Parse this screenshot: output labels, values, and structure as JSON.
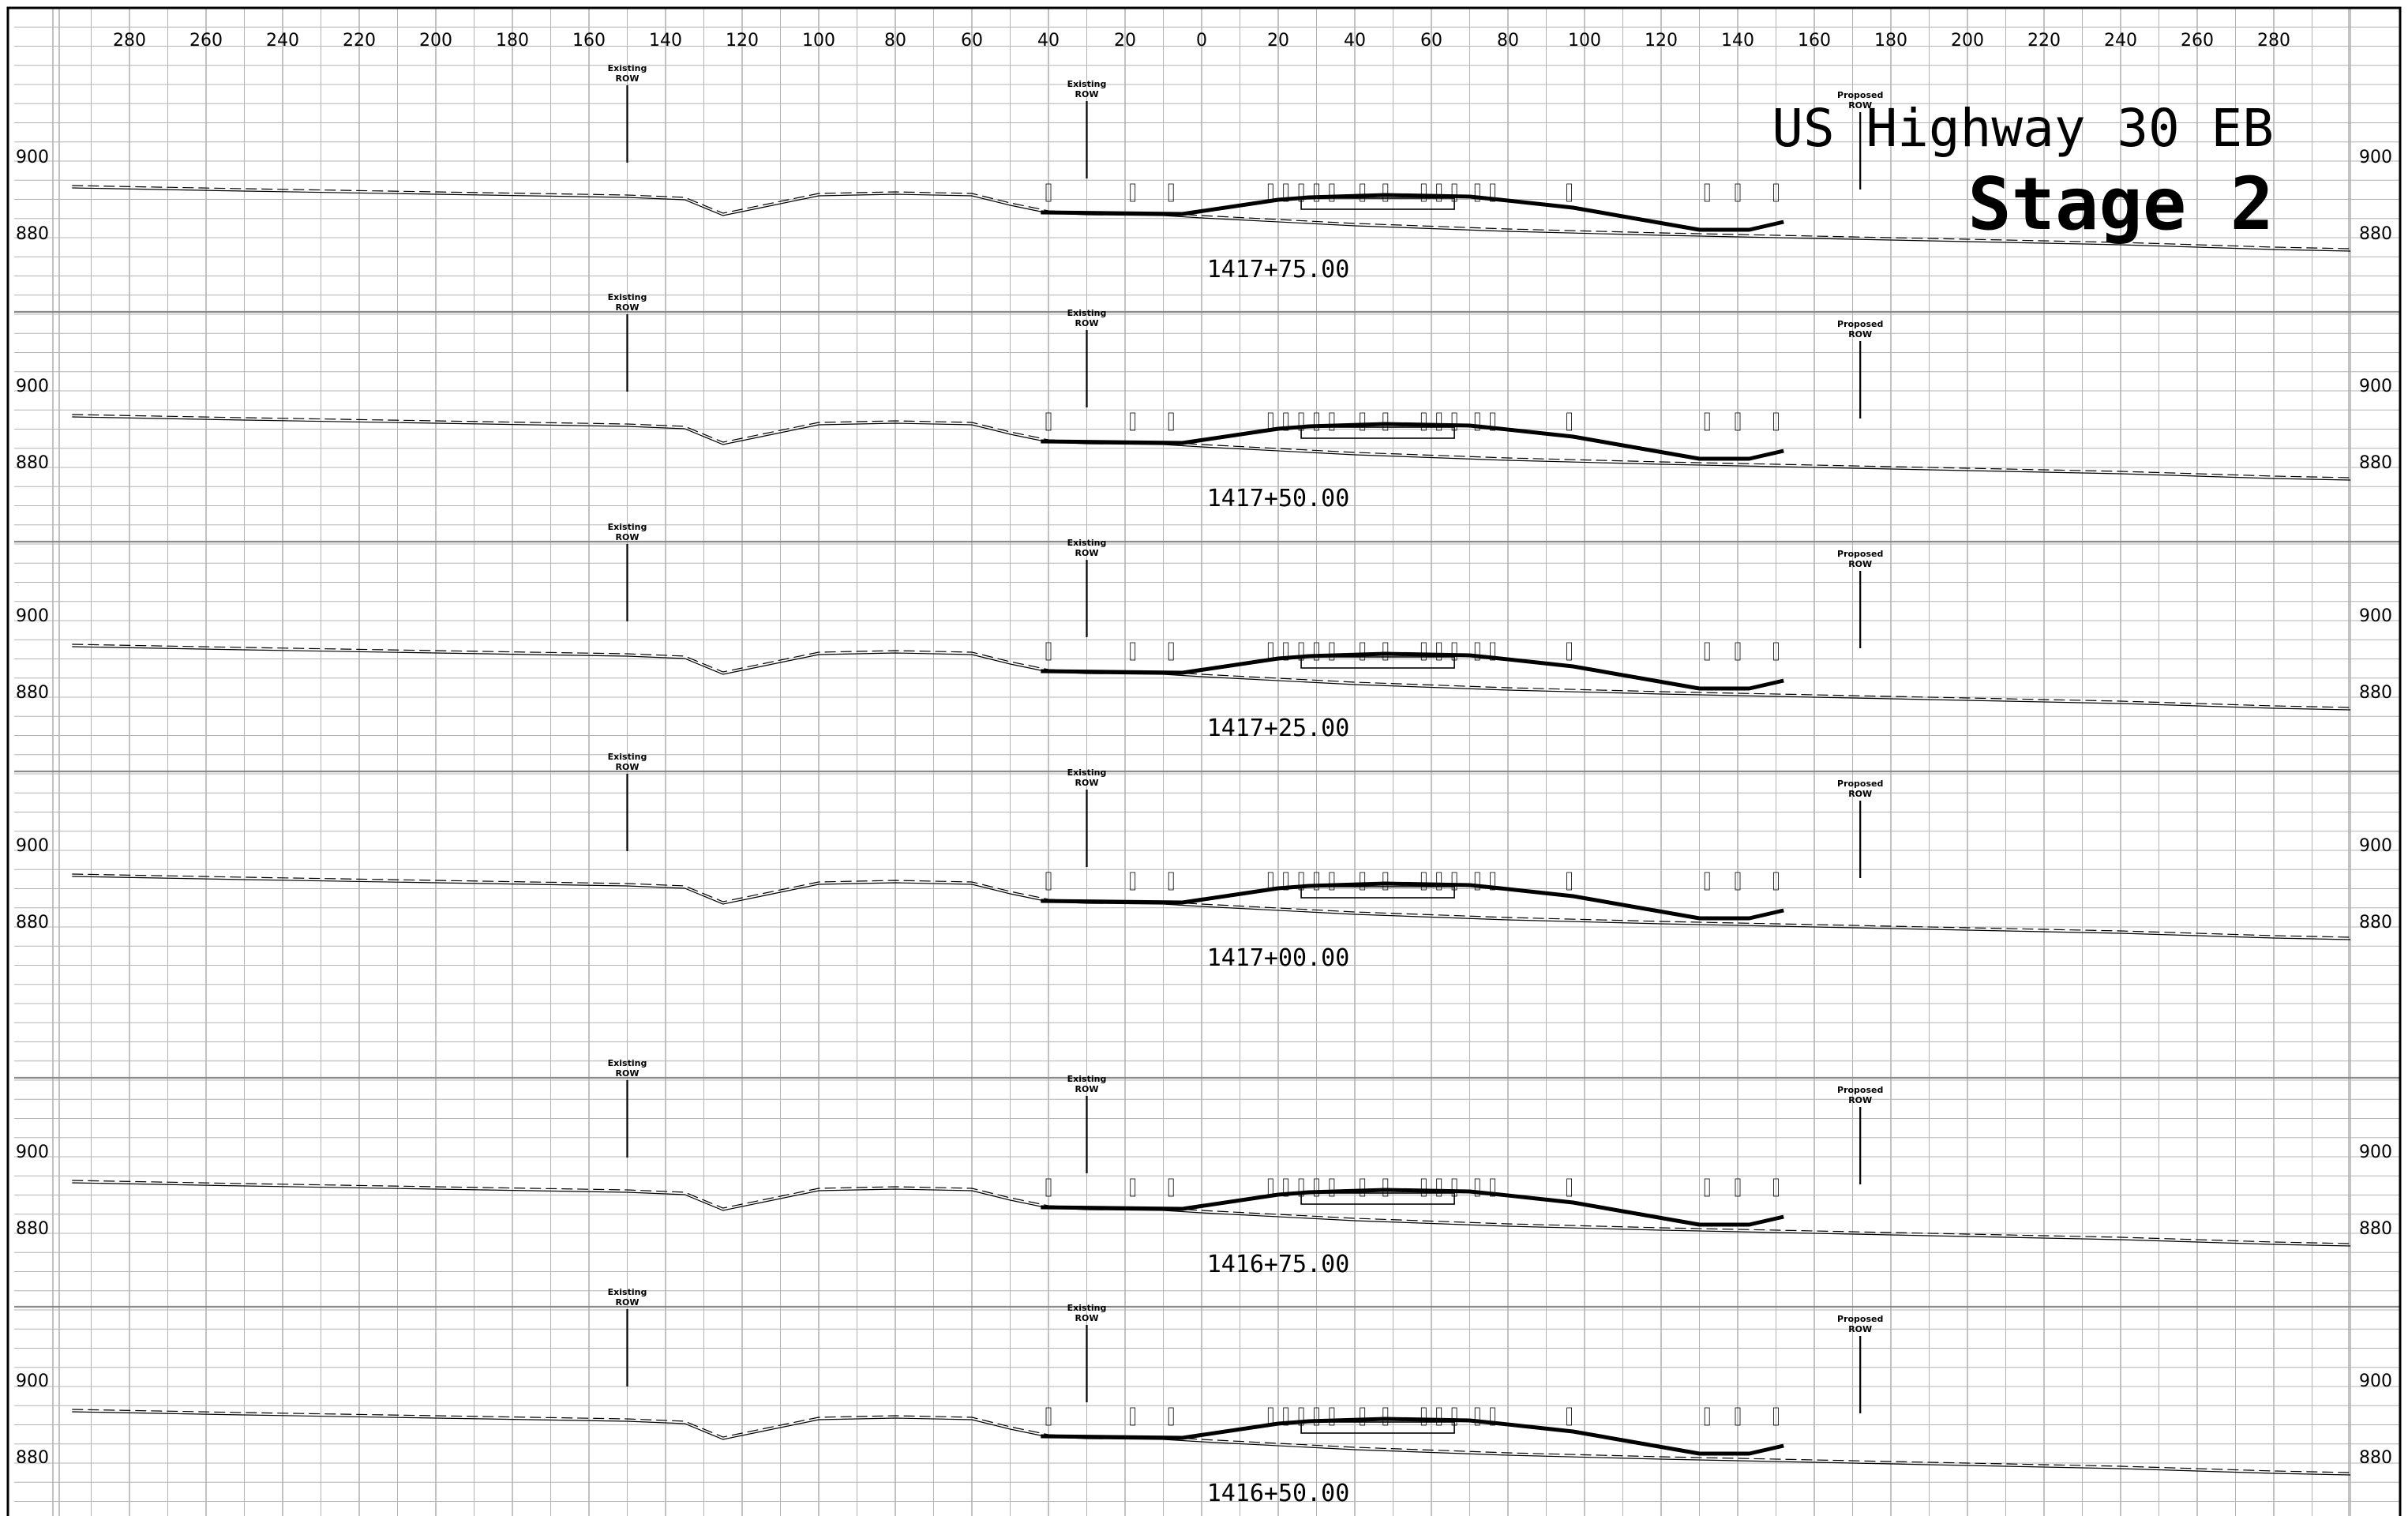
{
  "title": {
    "line1": "US Highway 30 EB",
    "line2": "Stage 2"
  },
  "axis": {
    "offset_ticks": [
      "280",
      "260",
      "240",
      "220",
      "200",
      "180",
      "160",
      "140",
      "120",
      "100",
      "80",
      "60",
      "40",
      "20",
      "0",
      "20",
      "40",
      "60",
      "80",
      "100",
      "120",
      "140",
      "160",
      "180",
      "200",
      "220",
      "240",
      "260",
      "280"
    ],
    "elevation_labels": [
      "900",
      "880"
    ]
  },
  "labels": {
    "existing_row": [
      "Existing",
      "ROW"
    ],
    "proposed_row": [
      "Proposed",
      "ROW"
    ]
  },
  "sections": [
    {
      "station": "1417+75.00"
    },
    {
      "station": "1417+50.00"
    },
    {
      "station": "1417+25.00"
    },
    {
      "station": "1417+00.00"
    },
    {
      "station": "1416+75.00"
    },
    {
      "station": "1416+50.00"
    }
  ],
  "colors": {
    "grid": "#b4b4b4",
    "line": "#000000",
    "background": "#ffffff"
  }
}
